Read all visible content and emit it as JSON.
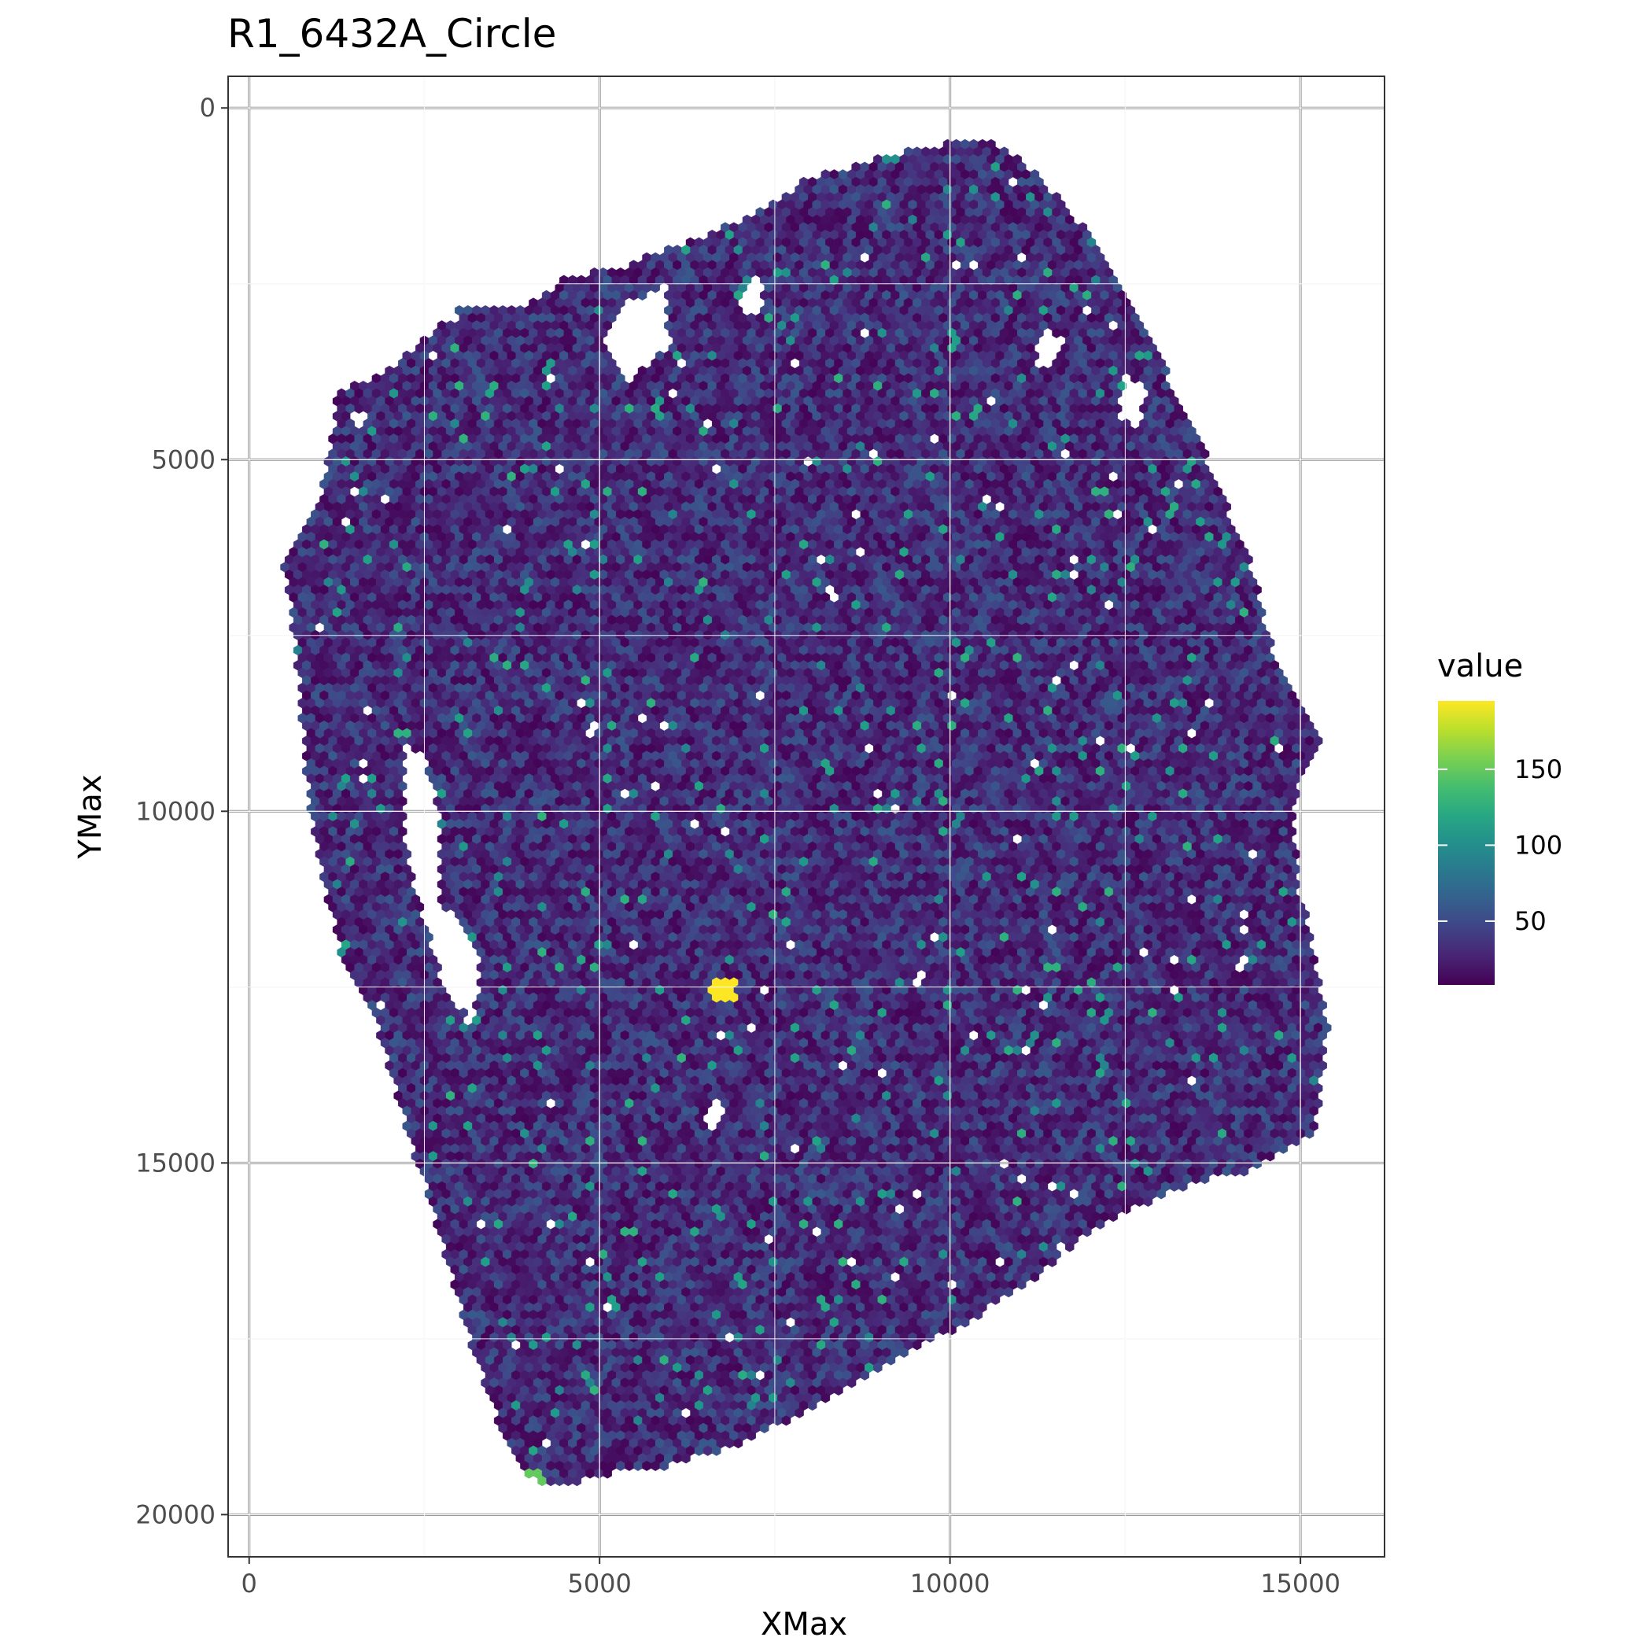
{
  "chart_data": {
    "type": "hexbin",
    "title": "R1_6432A_Circle",
    "xlabel": "XMax",
    "ylabel": "YMax",
    "xlim": [
      -300,
      16200
    ],
    "ylim": [
      20600,
      -450
    ],
    "y_reversed": true,
    "x_ticks": [
      0,
      5000,
      10000,
      15000
    ],
    "y_ticks": [
      0,
      5000,
      10000,
      15000,
      20000
    ],
    "x_tick_labels": [
      "0",
      "5000",
      "10000",
      "15000"
    ],
    "y_tick_labels": [
      "0",
      "5000",
      "10000",
      "15000",
      "20000"
    ],
    "grid": true,
    "colormap": "viridis",
    "legend": {
      "title": "value",
      "placement": "right",
      "range": [
        8,
        195
      ],
      "ticks": [
        50,
        100,
        150
      ],
      "tick_labels": [
        "50",
        "100",
        "150"
      ]
    },
    "region_outline": [
      [
        500,
        6500
      ],
      [
        1000,
        5500
      ],
      [
        1200,
        4500
      ],
      [
        1200,
        4100
      ],
      [
        1600,
        3900
      ],
      [
        2000,
        3700
      ],
      [
        2400,
        3400
      ],
      [
        3000,
        2800
      ],
      [
        4000,
        2800
      ],
      [
        4500,
        2400
      ],
      [
        5200,
        2300
      ],
      [
        6000,
        2000
      ],
      [
        7000,
        1600
      ],
      [
        8000,
        1000
      ],
      [
        9000,
        700
      ],
      [
        10500,
        400
      ],
      [
        11000,
        700
      ],
      [
        11300,
        1000
      ],
      [
        12000,
        1800
      ],
      [
        12500,
        2700
      ],
      [
        13000,
        3600
      ],
      [
        13500,
        4500
      ],
      [
        13800,
        5300
      ],
      [
        14300,
        6500
      ],
      [
        14600,
        7700
      ],
      [
        14900,
        8300
      ],
      [
        15300,
        8900
      ],
      [
        14900,
        9900
      ],
      [
        15000,
        11200
      ],
      [
        15200,
        12000
      ],
      [
        15400,
        13100
      ],
      [
        15200,
        14600
      ],
      [
        14300,
        15100
      ],
      [
        13100,
        15400
      ],
      [
        12000,
        16000
      ],
      [
        11000,
        16800
      ],
      [
        10000,
        17400
      ],
      [
        9000,
        17900
      ],
      [
        8000,
        18500
      ],
      [
        7000,
        19000
      ],
      [
        6000,
        19300
      ],
      [
        5200,
        19400
      ],
      [
        4500,
        19600
      ],
      [
        4000,
        19500
      ],
      [
        3600,
        18800
      ],
      [
        3200,
        17700
      ],
      [
        2700,
        16000
      ],
      [
        2400,
        15000
      ],
      [
        2100,
        14000
      ],
      [
        1800,
        13000
      ],
      [
        1300,
        12000
      ],
      [
        1100,
        11200
      ],
      [
        900,
        10300
      ],
      [
        800,
        9300
      ],
      [
        700,
        8100
      ],
      [
        600,
        7100
      ]
    ],
    "holes": [
      [
        [
          5300,
          2800
        ],
        [
          5900,
          2600
        ],
        [
          6000,
          3400
        ],
        [
          5400,
          3900
        ],
        [
          5100,
          3300
        ]
      ],
      [
        [
          2200,
          9000
        ],
        [
          2500,
          9200
        ],
        [
          2700,
          10000
        ],
        [
          2700,
          11200
        ],
        [
          3300,
          12100
        ],
        [
          3200,
          13000
        ],
        [
          2800,
          12600
        ],
        [
          2400,
          11200
        ],
        [
          2200,
          10300
        ]
      ],
      [
        [
          6700,
          14000
        ],
        [
          6800,
          14400
        ],
        [
          6600,
          14600
        ],
        [
          6500,
          14200
        ]
      ],
      [
        [
          11300,
          3100
        ],
        [
          11600,
          3300
        ],
        [
          11400,
          3800
        ],
        [
          11200,
          3600
        ]
      ],
      [
        [
          7200,
          2300
        ],
        [
          7400,
          2500
        ],
        [
          7200,
          3000
        ],
        [
          7000,
          2800
        ]
      ],
      [
        [
          1400,
          4400
        ],
        [
          1800,
          4300
        ],
        [
          1600,
          4600
        ]
      ],
      [
        [
          12500,
          3800
        ],
        [
          12800,
          4000
        ],
        [
          12700,
          4600
        ],
        [
          12400,
          4400
        ]
      ]
    ],
    "value_summary": {
      "typical_min": 10,
      "typical_max": 60,
      "scattered_high": [
        90,
        130
      ],
      "hotspots": [
        {
          "x": 6750,
          "y": 12500,
          "value": 195
        },
        {
          "x": 4000,
          "y": 19500,
          "value": 150
        },
        {
          "x": 5000,
          "y": 19650,
          "value": 150
        }
      ]
    }
  }
}
